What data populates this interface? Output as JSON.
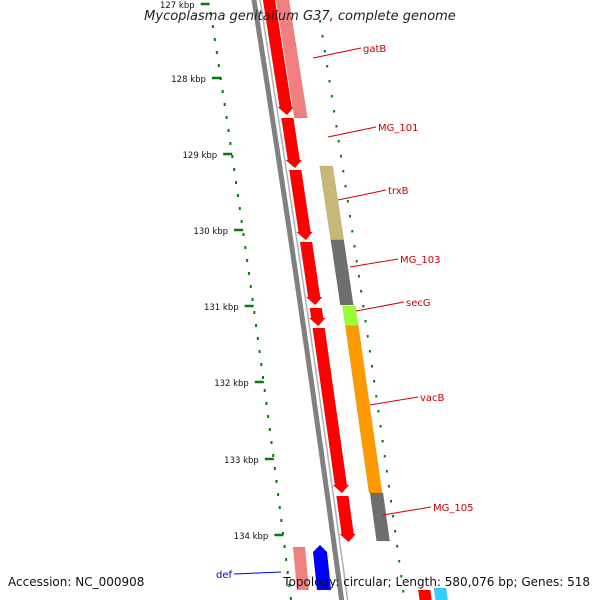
{
  "title": "Mycoplasma genitalium G37, complete genome",
  "accession_text": "Accession: NC_000908",
  "topology_text": "Topology: circular; Length: 580,076 bp; Genes: 518",
  "ticks": [
    "127 kbp",
    "128 kbp",
    "129 kbp",
    "130 kbp",
    "131 kbp",
    "132 kbp",
    "133 kbp",
    "134 kbp"
  ],
  "genes": [
    {
      "name": "gatB",
      "label_color": "#cc0000"
    },
    {
      "name": "MG_101",
      "label_color": "#cc0000"
    },
    {
      "name": "trxB",
      "label_color": "#cc0000"
    },
    {
      "name": "MG_103",
      "label_color": "#cc0000"
    },
    {
      "name": "secG",
      "label_color": "#cc0000"
    },
    {
      "name": "vacB",
      "label_color": "#cc0000"
    },
    {
      "name": "MG_105",
      "label_color": "#cc0000"
    },
    {
      "name": "def",
      "label_color": "#0000cc"
    }
  ],
  "colors": {
    "cds_red": "#ff0000",
    "gene_pink": "#f08080",
    "trxB_khaki": "#c8b878",
    "dark_gray": "#6e6e6e",
    "secG_green": "#99ff33",
    "vacB_orange": "#ff9900",
    "def_blue": "#0000ff",
    "cyan": "#33ccff",
    "tick_green": "#0a7a0a",
    "backbone_gray": "#808080"
  }
}
